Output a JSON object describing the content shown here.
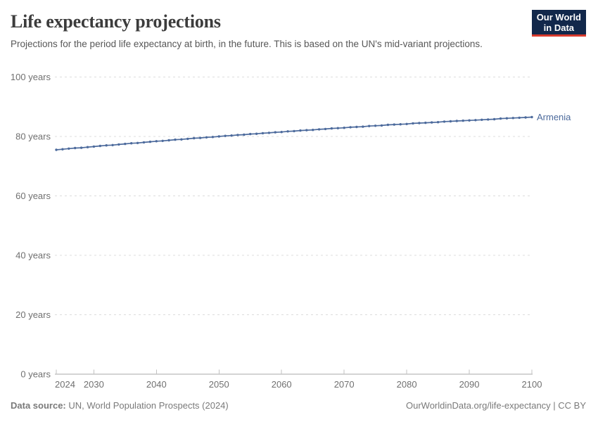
{
  "header": {
    "title": "Life expectancy projections",
    "subtitle": "Projections for the period life expectancy at birth, in the future. This is based on the UN's mid-variant projections.",
    "logo": {
      "line1": "Our World",
      "line2": "in Data",
      "bg_color": "#12284b",
      "accent_color": "#d93a2d"
    }
  },
  "chart_data": {
    "type": "line",
    "title": "Life expectancy projections",
    "xlabel": "",
    "ylabel": "",
    "xlim": [
      2024,
      2100
    ],
    "ylim": [
      0,
      100
    ],
    "x_start": 2024,
    "x_step": 1,
    "xticks": [
      2024,
      2030,
      2040,
      2050,
      2060,
      2070,
      2080,
      2090,
      2100
    ],
    "yticks": [
      0,
      20,
      40,
      60,
      80,
      100
    ],
    "ytick_suffix": " years",
    "grid": "horizontal-dashed",
    "legend_position": "end-of-line-label",
    "series": [
      {
        "name": "Armenia",
        "color": "#4c6a9c",
        "values": [
          75.5,
          75.7,
          75.9,
          76.1,
          76.2,
          76.4,
          76.6,
          76.8,
          77.0,
          77.1,
          77.3,
          77.5,
          77.7,
          77.8,
          78.0,
          78.2,
          78.4,
          78.5,
          78.7,
          78.9,
          79.0,
          79.2,
          79.4,
          79.5,
          79.7,
          79.8,
          80.0,
          80.2,
          80.3,
          80.5,
          80.6,
          80.8,
          80.9,
          81.1,
          81.2,
          81.4,
          81.5,
          81.7,
          81.8,
          82.0,
          82.1,
          82.2,
          82.4,
          82.5,
          82.7,
          82.8,
          82.9,
          83.1,
          83.2,
          83.3,
          83.5,
          83.6,
          83.7,
          83.9,
          84.0,
          84.1,
          84.2,
          84.4,
          84.5,
          84.6,
          84.7,
          84.8,
          85.0,
          85.1,
          85.2,
          85.3,
          85.4,
          85.5,
          85.6,
          85.7,
          85.8,
          86.0,
          86.1,
          86.2,
          86.3,
          86.4,
          86.5
        ]
      }
    ]
  },
  "footer": {
    "data_source_label": "Data source:",
    "data_source_value": "UN, World Population Prospects (2024)",
    "attribution": "OurWorldinData.org/life-expectancy | CC BY"
  },
  "colors": {
    "accent": "#4c6a9c",
    "grid": "#dcdcdc",
    "axis": "#a8a8a8",
    "tick": "#c2c2c2",
    "axis_text": "#707070"
  }
}
